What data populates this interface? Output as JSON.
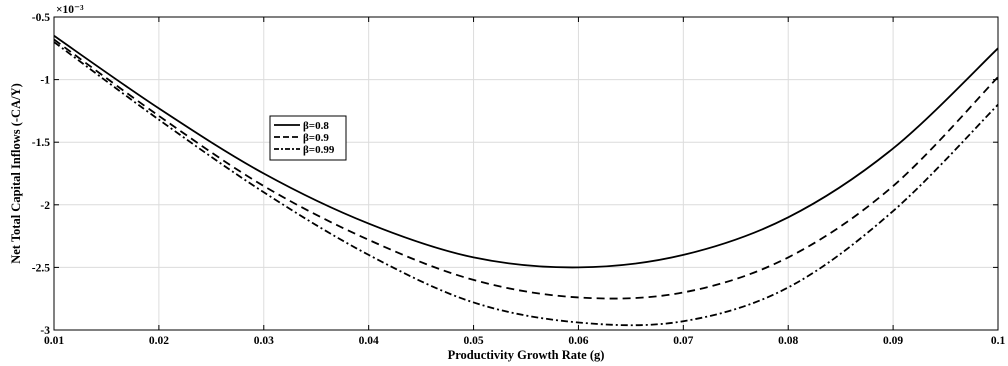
{
  "chart_data": {
    "type": "line",
    "xlabel": "Productivity Growth Rate (g)",
    "ylabel": "Net Total Capital Inflows (-CA/Y)",
    "exponent_label": "×10⁻³",
    "xlim": [
      0.01,
      0.1
    ],
    "ylim": [
      -3,
      -0.5
    ],
    "x_ticks": [
      0.01,
      0.02,
      0.03,
      0.04,
      0.05,
      0.06,
      0.07,
      0.08,
      0.09,
      0.1
    ],
    "x_tick_labels": [
      "0.01",
      "0.02",
      "0.03",
      "0.04",
      "0.05",
      "0.06",
      "0.07",
      "0.08",
      "0.09",
      "0.1"
    ],
    "y_ticks": [
      -3,
      -2.5,
      -2,
      -1.5,
      -1,
      -0.5
    ],
    "y_tick_labels": [
      "-3",
      "-2.5",
      "-2",
      "-1.5",
      "-1",
      "-0.5"
    ],
    "grid": true,
    "legend_position": "upper-left",
    "x": [
      0.01,
      0.02,
      0.03,
      0.04,
      0.05,
      0.06,
      0.07,
      0.08,
      0.09,
      0.1
    ],
    "series": [
      {
        "name": "β=0.8",
        "style": "solid",
        "values": [
          -0.65,
          -1.23,
          -1.75,
          -2.15,
          -2.42,
          -2.5,
          -2.4,
          -2.1,
          -1.55,
          -0.75
        ]
      },
      {
        "name": "β=0.9",
        "style": "dashed",
        "values": [
          -0.68,
          -1.29,
          -1.85,
          -2.28,
          -2.6,
          -2.74,
          -2.7,
          -2.42,
          -1.85,
          -0.98
        ]
      },
      {
        "name": "β=0.99",
        "style": "dashdot",
        "values": [
          -0.7,
          -1.32,
          -1.9,
          -2.4,
          -2.78,
          -2.94,
          -2.93,
          -2.66,
          -2.05,
          -1.2
        ]
      }
    ]
  }
}
